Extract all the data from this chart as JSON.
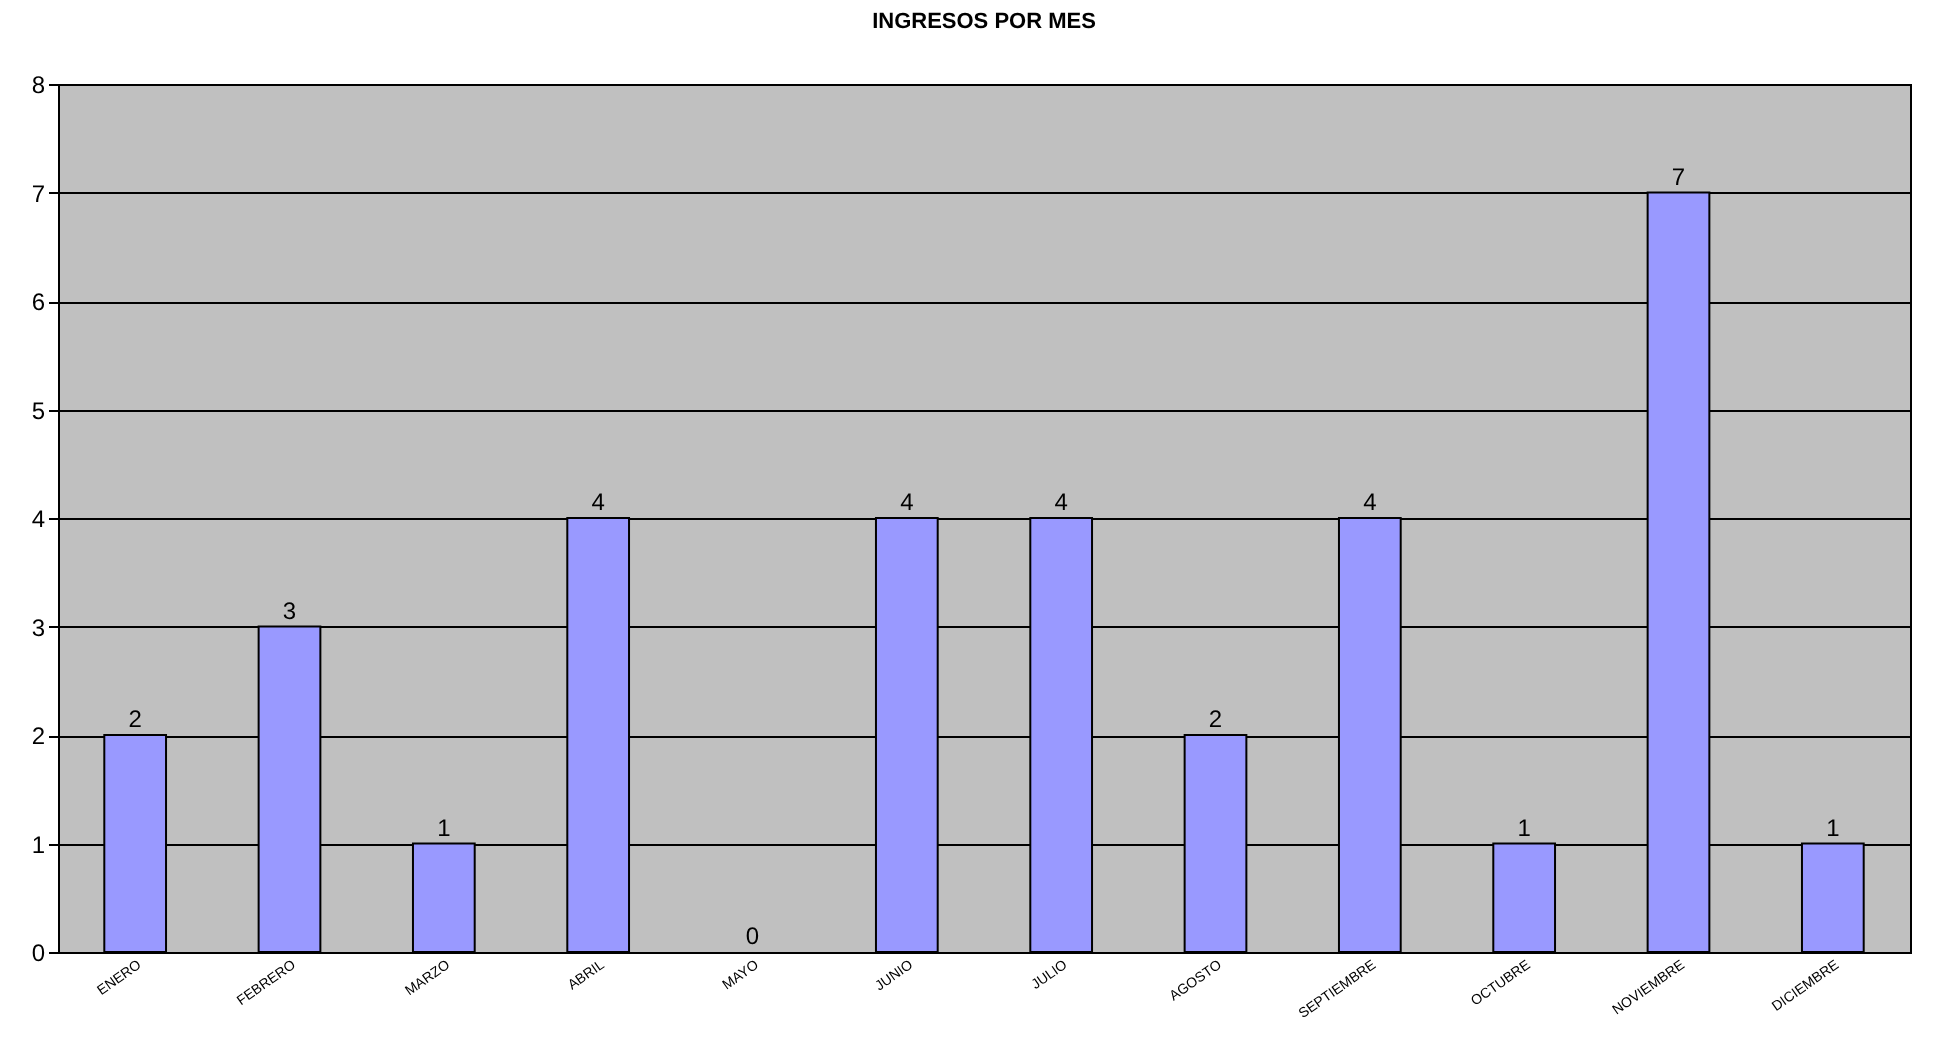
{
  "chart_data": {
    "type": "bar",
    "title": "INGRESOS POR MES",
    "categories": [
      "ENERO",
      "FEBRERO",
      "MARZO",
      "ABRIL",
      "MAYO",
      "JUNIO",
      "JULIO",
      "AGOSTO",
      "SEPTIEMBRE",
      "OCTUBRE",
      "NOVIEMBRE",
      "DICIEMBRE"
    ],
    "values": [
      2,
      3,
      1,
      4,
      0,
      4,
      4,
      2,
      4,
      1,
      7,
      1
    ],
    "color": "#9999ff",
    "ylim": [
      0,
      8
    ],
    "yticks": [
      0,
      1,
      2,
      3,
      4,
      5,
      6,
      7,
      8
    ],
    "grid": "y",
    "data_labels": true
  }
}
